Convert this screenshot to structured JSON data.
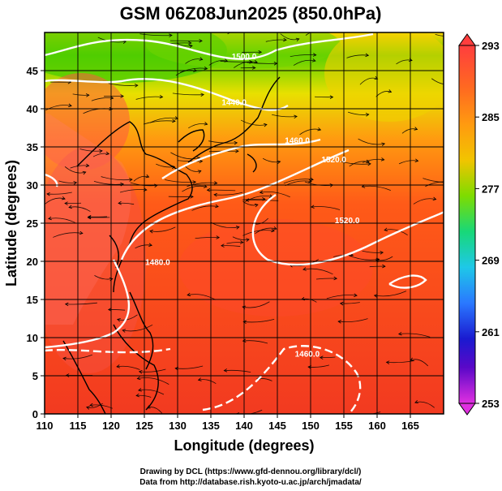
{
  "title": "GSM 06Z08Jun2025 (850.0hPa)",
  "x_axis_label": "Longitude (degrees)",
  "y_axis_label": "Latitude  (degrees)",
  "credits": [
    "Drawing by DCL (https://www.gfd-dennou.org/library/dcl/)",
    "Data from http://database.rish.kyoto-u.ac.jp/arch/jmadata/"
  ],
  "map": {
    "lon_range": [
      110,
      170
    ],
    "lat_range": [
      0,
      50
    ],
    "lon_ticks": [
      110,
      115,
      120,
      125,
      130,
      135,
      140,
      145,
      150,
      155,
      160,
      165
    ],
    "lat_ticks": [
      0,
      5,
      10,
      15,
      20,
      25,
      30,
      35,
      40,
      45
    ],
    "grid": true,
    "field": "temperature",
    "overlays": [
      "geopotential height contours",
      "wind streamlines",
      "coastlines"
    ]
  },
  "contour_labels": [
    {
      "text": "1500.0",
      "lon": 140,
      "lat": 46.5
    },
    {
      "text": "1440.0",
      "lon": 138.5,
      "lat": 40.5
    },
    {
      "text": "1460.0",
      "lon": 148,
      "lat": 35.5
    },
    {
      "text": "1520.0",
      "lon": 153.5,
      "lat": 33
    },
    {
      "text": "1520.0",
      "lon": 155.5,
      "lat": 25
    },
    {
      "text": "1480.0",
      "lon": 127,
      "lat": 19.5
    },
    {
      "text": "1460.0",
      "lon": 149.5,
      "lat": 7.5
    }
  ],
  "colorbar": {
    "min": 253,
    "max": 293,
    "tick_labels": [
      "293",
      "285",
      "277",
      "269",
      "261",
      "253"
    ],
    "colors_top_to_bottom": [
      "#ff3e3e",
      "#ff8a1a",
      "#f2c400",
      "#7edc00",
      "#18d878",
      "#1ec8e8",
      "#2a78ff",
      "#1a1ad0",
      "#5a08c8",
      "#e030e0"
    ]
  }
}
